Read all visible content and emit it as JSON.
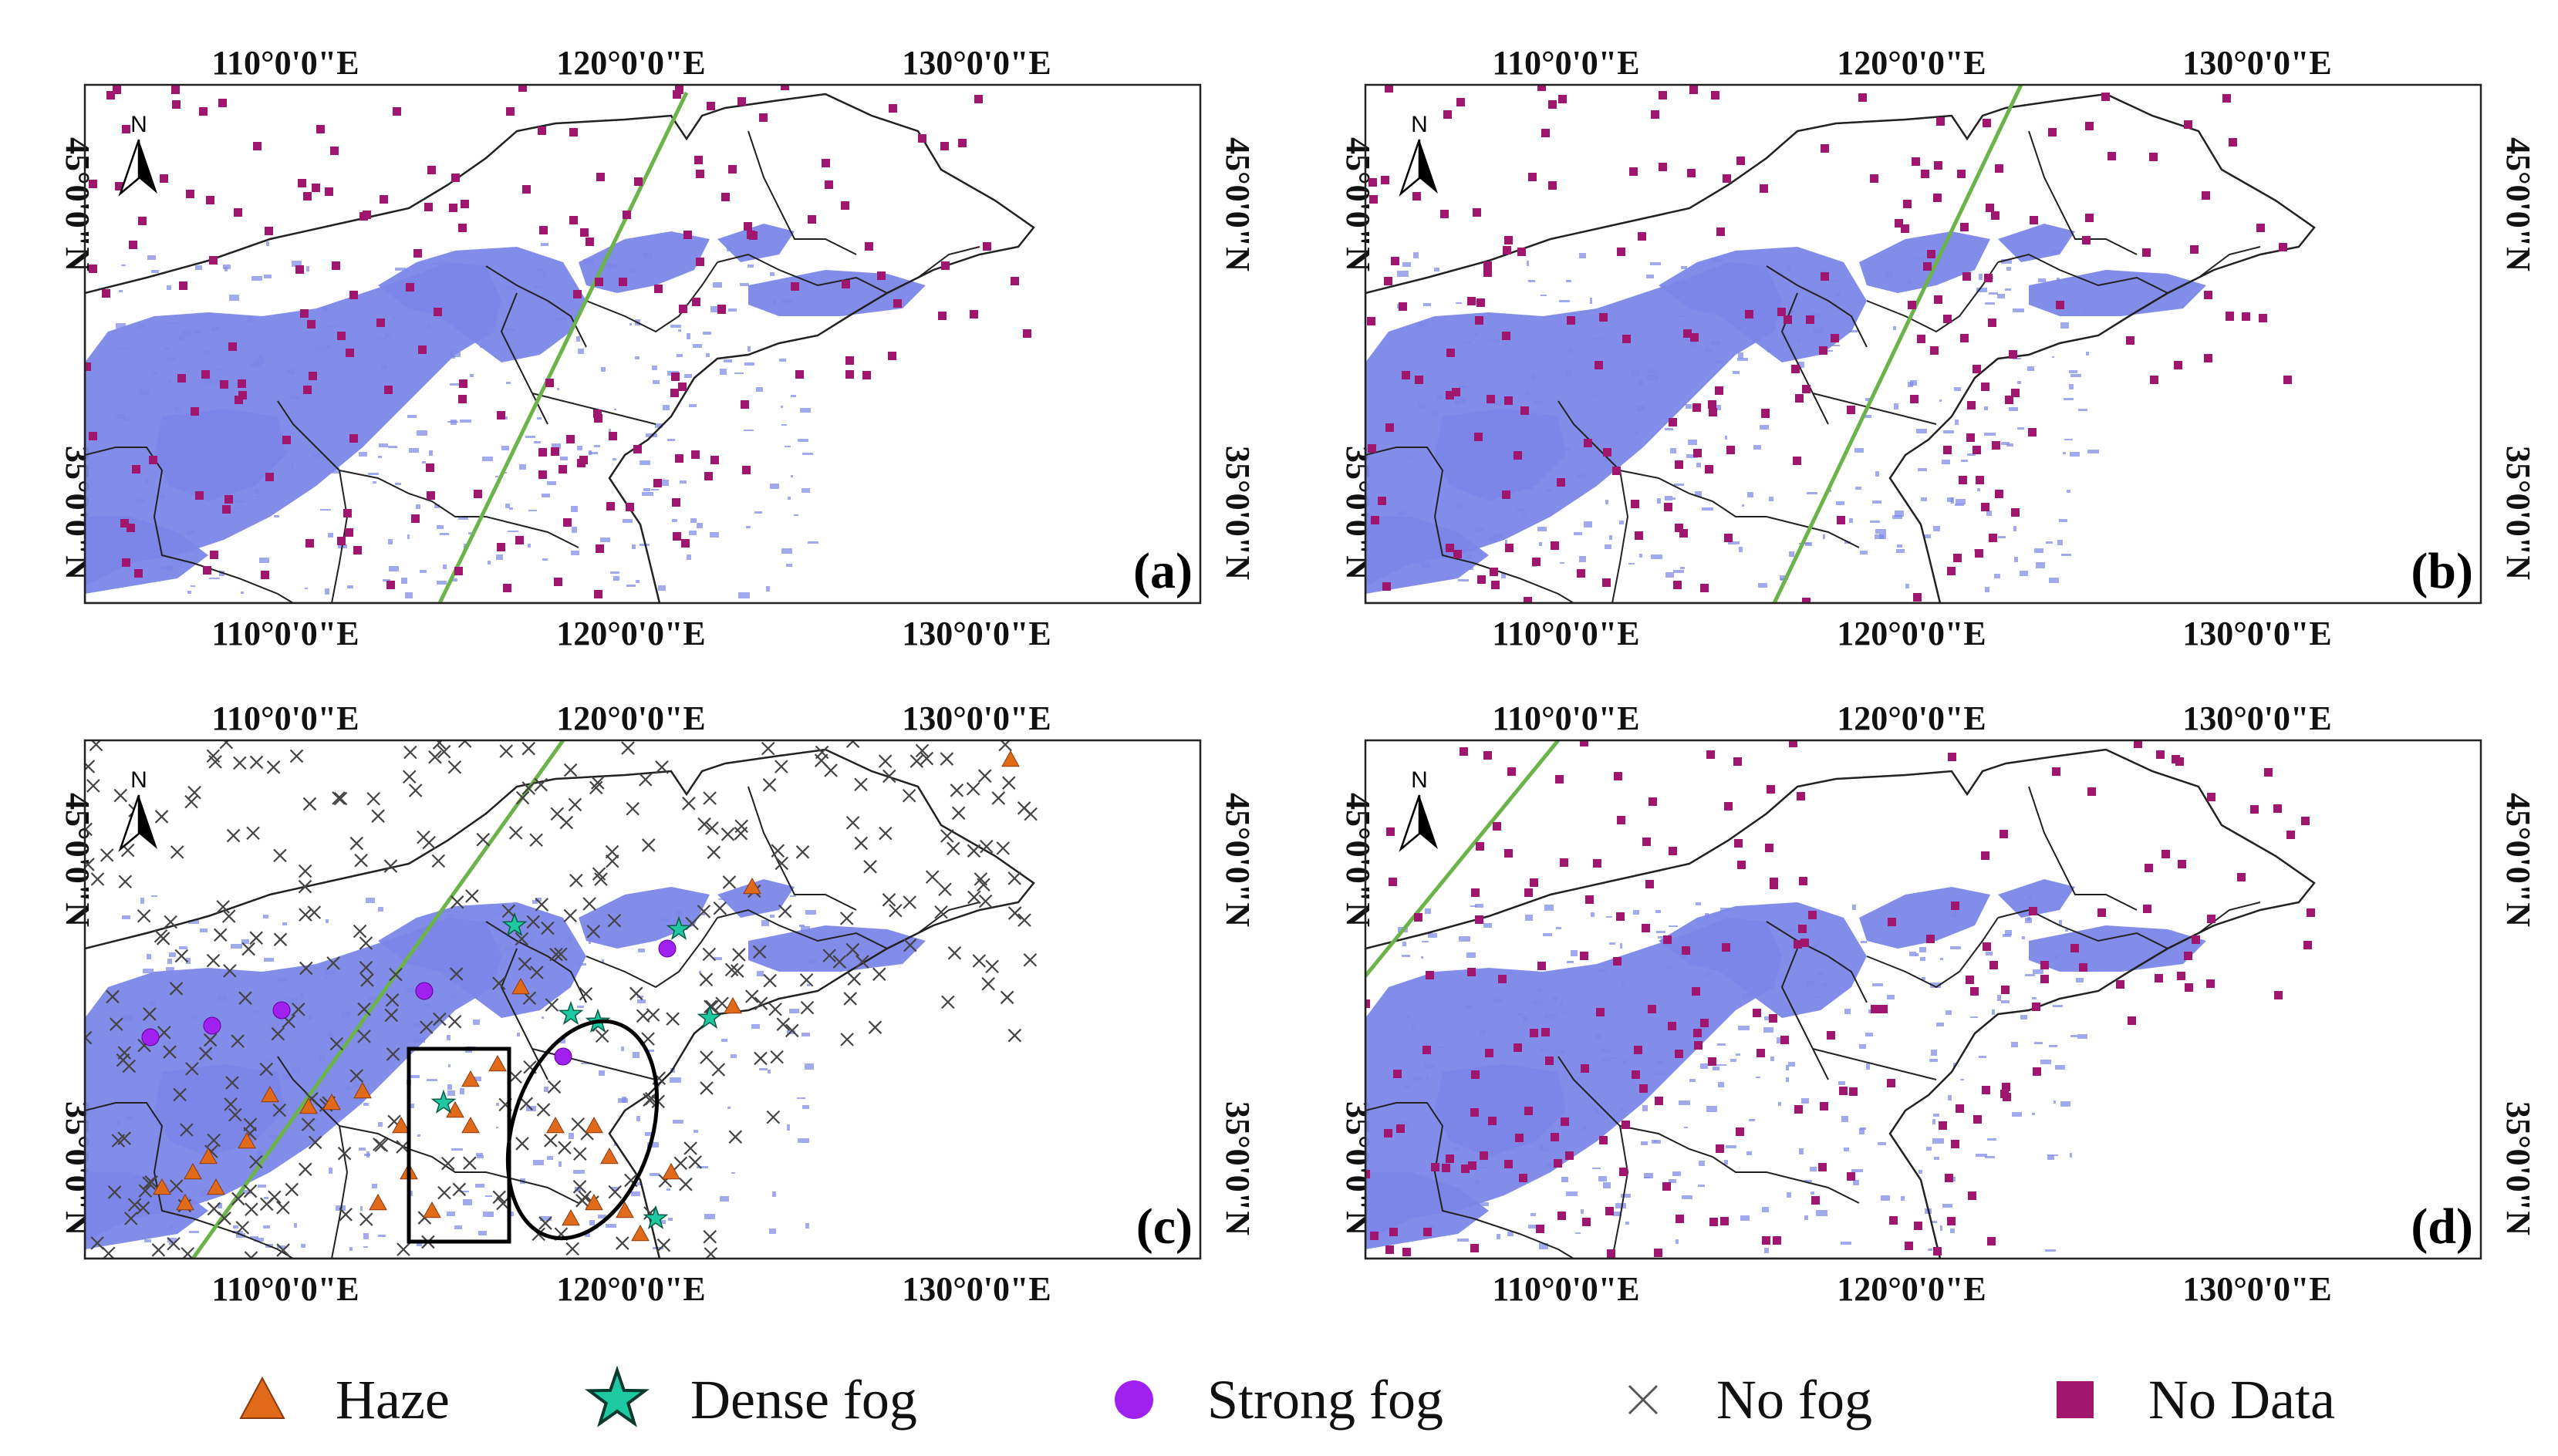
{
  "panels": [
    {
      "id": "a",
      "label": "(a)",
      "top_lon": [
        "110°0'0\"E",
        "120°0'0\"E",
        "130°0'0\"E"
      ],
      "bottom_lon": [
        "110°0'0\"E",
        "120°0'0\"E",
        "130°0'0\"E"
      ],
      "lat": [
        "45°0'0\"N",
        "35°0'0\"N"
      ],
      "north": "N"
    },
    {
      "id": "b",
      "label": "(b)",
      "top_lon": [
        "110°0'0\"E",
        "120°0'0\"E",
        "130°0'0\"E"
      ],
      "bottom_lon": [
        "110°0'0\"E",
        "120°0'0\"E",
        "130°0'0\"E"
      ],
      "lat": [
        "45°0'0\"N",
        "35°0'0\"N"
      ],
      "north": "N"
    },
    {
      "id": "c",
      "label": "(c)",
      "top_lon": [
        "110°0'0\"E",
        "120°0'0\"E",
        "130°0'0\"E"
      ],
      "bottom_lon": [
        "110°0'0\"E",
        "120°0'0\"E",
        "130°0'0\"E"
      ],
      "lat": [
        "45°0'0\"N",
        "35°0'0\"N"
      ],
      "north": "N"
    },
    {
      "id": "d",
      "label": "(d)",
      "top_lon": [
        "110°0'0\"E",
        "120°0'0\"E",
        "130°0'0\"E"
      ],
      "bottom_lon": [
        "110°0'0\"E",
        "120°0'0\"E",
        "130°0'0\"E"
      ],
      "lat": [
        "45°0'0\"N",
        "35°0'0\"N"
      ],
      "north": "N"
    }
  ],
  "legend": [
    {
      "key": "haze",
      "label": "Haze",
      "color": "#e06a1a",
      "icon": "triangle-icon"
    },
    {
      "key": "dense",
      "label": "Dense fog",
      "color": "#1ec8a0",
      "icon": "star-icon"
    },
    {
      "key": "strong",
      "label": "Strong fog",
      "color": "#a020f0",
      "icon": "circle-icon"
    },
    {
      "key": "nofog",
      "label": "No fog",
      "color": "#555555",
      "icon": "x-icon"
    },
    {
      "key": "nodata",
      "label": "No Data",
      "color": "#a0156e",
      "icon": "square-icon"
    }
  ],
  "colors": {
    "fog": "#7b86e8",
    "track": "#6bb34a",
    "border": "#222222",
    "nodata": "#a0156e"
  }
}
